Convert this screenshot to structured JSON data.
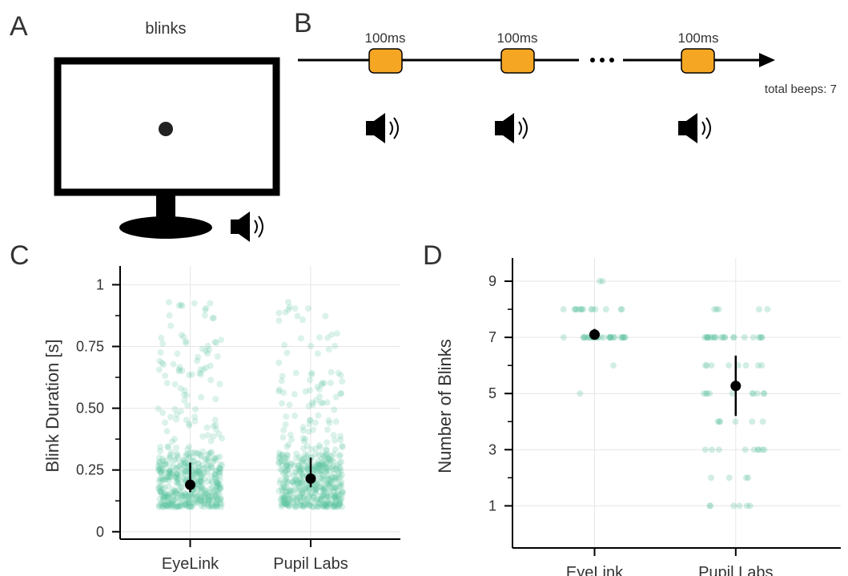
{
  "panels": {
    "a": {
      "letter": "A",
      "title": "blinks"
    },
    "b": {
      "letter": "B",
      "beep_labels": [
        "100ms",
        "100ms",
        "100ms"
      ],
      "total": "total beeps: 7"
    },
    "c": {
      "letter": "C"
    },
    "d": {
      "letter": "D"
    }
  },
  "colors": {
    "points": "#5cc29f",
    "mean": "#000000",
    "beep_box": "#f5a623"
  },
  "icons": [
    "monitor-icon",
    "fixation-dot-icon",
    "speaker-icon"
  ],
  "chart_data": [
    {
      "type": "scatter",
      "panel": "C",
      "ylabel": "Blink Duration [s]",
      "xlabel": "",
      "categories": [
        "EyeLink",
        "Pupil Labs"
      ],
      "ylim": [
        -0.03,
        1.05
      ],
      "yticks": [
        0,
        0.25,
        0.5,
        0.75,
        1
      ],
      "ytick_labels": [
        "0",
        "0.25",
        "0.50",
        "0.75",
        "1"
      ],
      "grid": true,
      "jitter_bulk": [
        [
          0.1,
          0.3
        ],
        [
          0.1,
          0.3
        ]
      ],
      "means": [
        0.19,
        0.215
      ],
      "ci": [
        [
          0.16,
          0.28
        ],
        [
          0.18,
          0.3
        ]
      ]
    },
    {
      "type": "scatter",
      "panel": "D",
      "ylabel": "Number of Blinks",
      "xlabel": "",
      "categories": [
        "EyeLink",
        "Pupil Labs"
      ],
      "ylim": [
        -0.5,
        9.6
      ],
      "yticks": [
        1,
        3,
        5,
        7,
        9
      ],
      "ytick_labels": [
        "1",
        "3",
        "5",
        "7",
        "9"
      ],
      "grid": true,
      "counts": [
        {
          "5": 1,
          "6": 1,
          "7": 30,
          "8": 14,
          "9": 2
        },
        {
          "1": 6,
          "2": 4,
          "3": 9,
          "4": 6,
          "5": 10,
          "6": 8,
          "7": 22,
          "8": 5
        }
      ],
      "means": [
        7.1,
        5.27
      ],
      "ci": [
        [
          6.95,
          7.3
        ],
        [
          4.2,
          6.35
        ]
      ]
    }
  ]
}
